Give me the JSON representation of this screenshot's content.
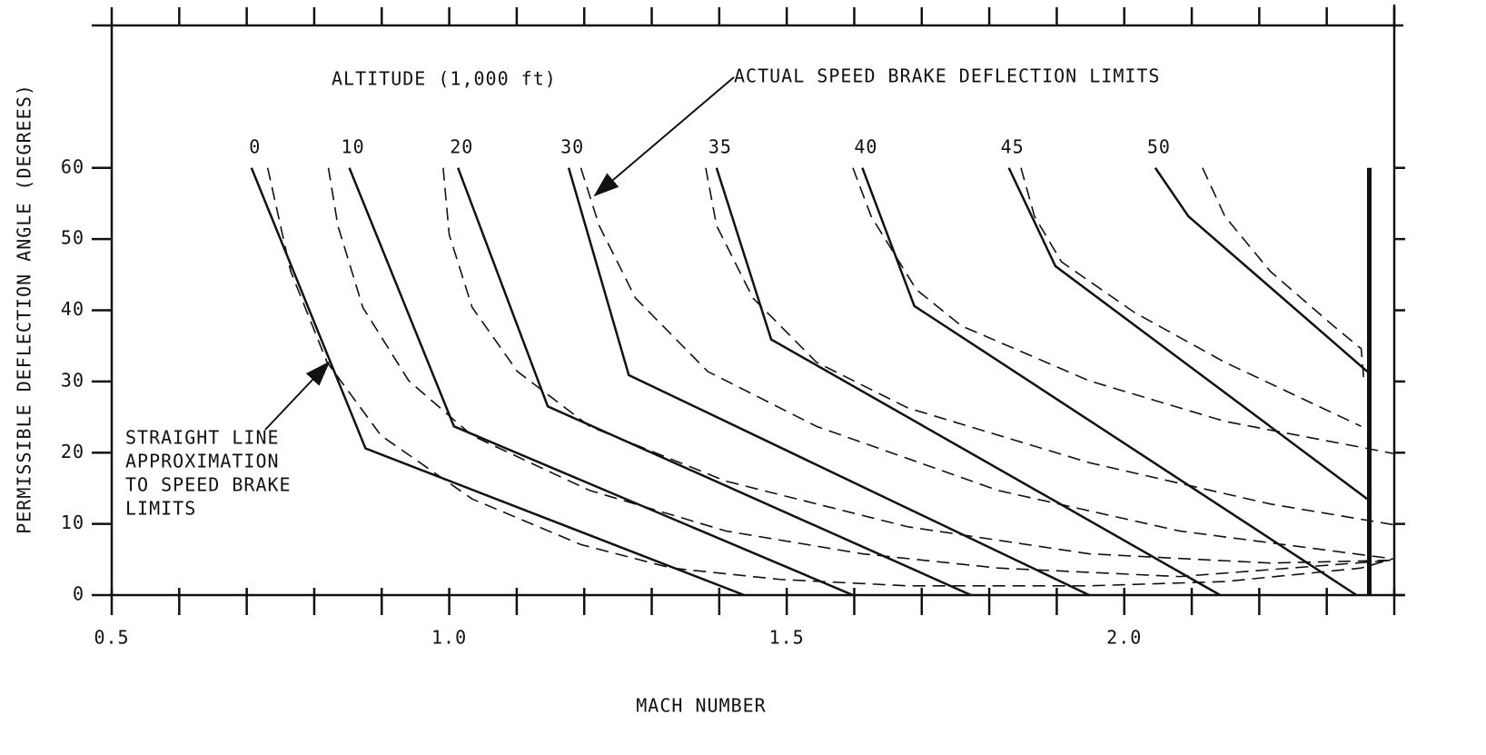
{
  "chart_data": {
    "type": "line",
    "x_label": "MACH NUMBER",
    "y_label": "PERMISSIBLE DEFLECTION ANGLE (DEGREES)",
    "series_label": "ALTITUDE (1,000 ft)",
    "xlim": [
      0.5,
      2.4
    ],
    "ylim": [
      0,
      80
    ],
    "xticks": [
      0.5,
      {
        "value": 1,
        "label": "1.0"
      },
      1.5,
      {
        "value": 2,
        "label": "2.0"
      }
    ],
    "xminorticks": [
      0.6,
      0.7,
      0.8,
      0.9,
      1.1,
      1.2,
      1.3,
      1.4,
      1.6,
      1.7,
      1.8,
      1.9,
      2.1,
      2.2,
      2.3,
      2.4
    ],
    "yticks": [
      0,
      10,
      20,
      30,
      40,
      50,
      60
    ],
    "series": [
      {
        "name": "0",
        "x": [
          0.707,
          0.876,
          1.437
        ],
        "values": [
          60,
          20.6,
          0
        ]
      },
      {
        "name": "10",
        "x": [
          0.852,
          1.007,
          1.598
        ],
        "values": [
          60,
          23.7,
          0
        ]
      },
      {
        "name": "20",
        "x": [
          1.013,
          1.146,
          1.773
        ],
        "values": [
          60,
          26.5,
          0
        ]
      },
      {
        "name": "30",
        "x": [
          1.177,
          1.266,
          1.948
        ],
        "values": [
          60,
          30.9,
          0
        ]
      },
      {
        "name": "35",
        "x": [
          1.396,
          1.477,
          2.142
        ],
        "values": [
          60,
          35.9,
          0
        ]
      },
      {
        "name": "40",
        "x": [
          1.612,
          1.689,
          2.344
        ],
        "values": [
          60,
          40.6,
          0
        ]
      },
      {
        "name": "45",
        "x": [
          1.829,
          1.898,
          2.36
        ],
        "values": [
          60,
          46.2,
          13.5
        ]
      },
      {
        "name": "50",
        "x": [
          2.046,
          2.095,
          2.36
        ],
        "values": [
          60,
          53.2,
          31.4
        ]
      }
    ],
    "actual_series": [
      {
        "x": [
          0.731,
          0.765,
          0.819,
          0.899,
          1.034,
          1.195,
          1.329,
          1.49,
          1.679,
          1.948,
          2.149,
          2.351,
          2.398
        ],
        "values": [
          60,
          45.5,
          32.7,
          22.4,
          13.5,
          7.1,
          3.8,
          2.2,
          1.3,
          1.3,
          1.9,
          3.8,
          5.1
        ]
      },
      {
        "x": [
          0.821,
          0.835,
          0.872,
          0.94,
          1.034,
          1.208,
          1.41,
          1.612,
          1.813,
          2.082,
          2.398
        ],
        "values": [
          60,
          51.9,
          40.4,
          30.1,
          22.4,
          14.7,
          9,
          5.8,
          3.8,
          2.6,
          4.9
        ]
      },
      {
        "x": [
          0.991,
          1.0,
          1.034,
          1.101,
          1.208,
          1.41,
          1.679,
          1.948,
          2.216,
          2.398
        ],
        "values": [
          60,
          50.6,
          40.4,
          31.4,
          23.7,
          16,
          9.6,
          5.8,
          4.5,
          4.9
        ]
      },
      {
        "x": [
          1.195,
          1.222,
          1.276,
          1.383,
          1.544,
          1.813,
          2.082,
          2.398
        ],
        "values": [
          60,
          51.9,
          41.7,
          31.4,
          23.7,
          14.7,
          9,
          5.1
        ]
      },
      {
        "x": [
          1.38,
          1.396,
          1.45,
          1.544,
          1.679,
          1.948,
          2.216,
          2.398
        ],
        "values": [
          60,
          51.9,
          41.7,
          32.7,
          26.3,
          18.6,
          12.8,
          9.9
        ]
      },
      {
        "x": [
          1.598,
          1.625,
          1.692,
          1.759,
          1.948,
          2.149,
          2.398
        ],
        "values": [
          60,
          53.2,
          42.9,
          37.8,
          30.1,
          24.4,
          19.9
        ]
      },
      {
        "x": [
          1.847,
          1.867,
          1.907,
          2.015,
          2.149,
          2.351
        ],
        "values": [
          60,
          53.2,
          46.8,
          39.7,
          32.7,
          23.7
        ]
      },
      {
        "x": [
          2.116,
          2.149,
          2.216,
          2.31,
          2.351,
          2.355
        ],
        "values": [
          60,
          53.2,
          45.5,
          37.8,
          34.6,
          30.1
        ]
      }
    ],
    "limit_line": {
      "x": 2.363,
      "values": [
        0,
        60
      ]
    },
    "annotations": [
      {
        "lines": [
          "ACTUAL SPEED BRAKE DEFLECTION LIMITS"
        ]
      },
      {
        "lines": [
          "STRAIGHT LINE",
          "APPROXIMATION",
          "TO SPEED BRAKE",
          "LIMITS"
        ]
      }
    ]
  }
}
